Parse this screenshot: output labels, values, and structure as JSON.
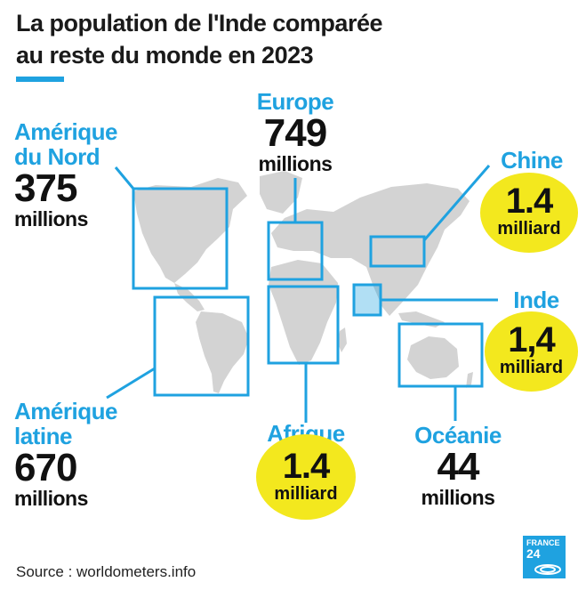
{
  "title": {
    "line1": "La population de l'Inde comparée",
    "line2": "au reste du monde en 2023"
  },
  "colors": {
    "accent": "#1fa2e0",
    "highlight": "#f3e81e",
    "map": "#d3d3d3"
  },
  "regions": {
    "amerique_nord": {
      "name_l1": "Amérique",
      "name_l2": "du Nord",
      "value": "375",
      "unit": "millions"
    },
    "europe": {
      "name": "Europe",
      "value": "749",
      "unit": "millions"
    },
    "chine": {
      "name": "Chine",
      "value": "1.4",
      "unit": "milliard"
    },
    "inde": {
      "name": "Inde",
      "value": "1,4",
      "unit": "milliard"
    },
    "amerique_latine": {
      "name_l1": "Amérique",
      "name_l2": "latine",
      "value": "670",
      "unit": "millions"
    },
    "afrique": {
      "name": "Afrique",
      "value": "1.4",
      "unit": "milliard"
    },
    "oceanie": {
      "name": "Océanie",
      "value": "44",
      "unit": "millions"
    }
  },
  "source": "Source : worldometers.info",
  "logo": {
    "line1": "FRANCE",
    "line2": "24"
  }
}
